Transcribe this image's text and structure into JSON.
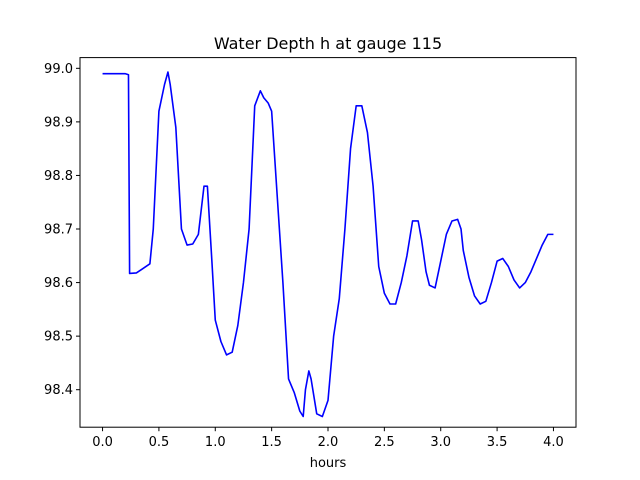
{
  "chart_data": {
    "type": "line",
    "title": "Water Depth h at gauge 115",
    "xlabel": "hours",
    "ylabel": "",
    "xlim": [
      -0.2,
      4.2
    ],
    "ylim": [
      98.33,
      99.02
    ],
    "xticks": [
      "0.0",
      "0.5",
      "1.0",
      "1.5",
      "2.0",
      "2.5",
      "3.0",
      "3.5",
      "4.0"
    ],
    "yticks": [
      "98.4",
      "98.5",
      "98.6",
      "98.7",
      "98.8",
      "98.9",
      "99.0"
    ],
    "grid": false,
    "legend": "none",
    "series": [
      {
        "color": "#0000ff",
        "x": [
          0.0,
          0.1,
          0.2,
          0.23,
          0.24,
          0.3,
          0.35,
          0.42,
          0.45,
          0.5,
          0.55,
          0.58,
          0.6,
          0.65,
          0.7,
          0.75,
          0.8,
          0.85,
          0.9,
          0.93,
          0.97,
          1.0,
          1.05,
          1.1,
          1.15,
          1.2,
          1.25,
          1.3,
          1.35,
          1.4,
          1.43,
          1.47,
          1.5,
          1.55,
          1.6,
          1.65,
          1.7,
          1.75,
          1.78,
          1.8,
          1.83,
          1.85,
          1.9,
          1.95,
          2.0,
          2.05,
          2.1,
          2.15,
          2.2,
          2.25,
          2.3,
          2.35,
          2.4,
          2.45,
          2.5,
          2.55,
          2.6,
          2.65,
          2.7,
          2.75,
          2.8,
          2.83,
          2.87,
          2.9,
          2.95,
          3.0,
          3.05,
          3.1,
          3.15,
          3.18,
          3.2,
          3.25,
          3.3,
          3.35,
          3.4,
          3.45,
          3.5,
          3.55,
          3.6,
          3.65,
          3.7,
          3.75,
          3.8,
          3.85,
          3.9,
          3.95,
          4.0
        ],
        "y": [
          98.99,
          98.99,
          98.99,
          98.988,
          98.617,
          98.618,
          98.625,
          98.635,
          98.7,
          98.92,
          98.97,
          98.993,
          98.97,
          98.89,
          98.7,
          98.67,
          98.672,
          98.69,
          98.78,
          98.78,
          98.64,
          98.53,
          98.49,
          98.465,
          98.47,
          98.52,
          98.6,
          98.7,
          98.93,
          98.958,
          98.945,
          98.935,
          98.92,
          98.76,
          98.6,
          98.42,
          98.395,
          98.36,
          98.35,
          98.4,
          98.435,
          98.42,
          98.355,
          98.35,
          98.38,
          98.5,
          98.57,
          98.7,
          98.85,
          98.93,
          98.93,
          98.88,
          98.78,
          98.63,
          98.58,
          98.56,
          98.56,
          98.6,
          98.65,
          98.715,
          98.715,
          98.68,
          98.62,
          98.595,
          98.59,
          98.64,
          98.69,
          98.715,
          98.718,
          98.7,
          98.66,
          98.61,
          98.575,
          98.56,
          98.565,
          98.6,
          98.64,
          98.645,
          98.63,
          98.605,
          98.59,
          98.6,
          98.62,
          98.645,
          98.67,
          98.69,
          98.69
        ]
      }
    ]
  }
}
